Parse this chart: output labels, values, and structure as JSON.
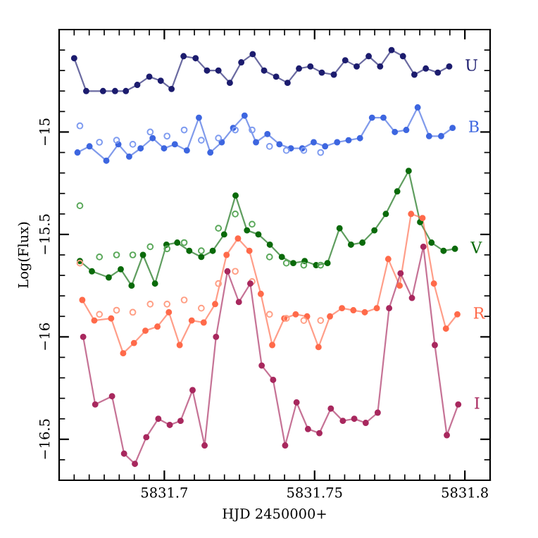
{
  "chart_data": {
    "type": "line",
    "xlabel": "HJD 2450000+",
    "ylabel": "Log(Flux)",
    "xlim": [
      5831.665,
      5831.8084
    ],
    "ylim": [
      -16.7,
      -14.5
    ],
    "marker": "circle",
    "grid": false,
    "legend": false,
    "xticks": [
      {
        "value": 5831.67,
        "label": null
      },
      {
        "value": 5831.675,
        "label": null
      },
      {
        "value": 5831.68,
        "label": null
      },
      {
        "value": 5831.685,
        "label": null
      },
      {
        "value": 5831.69,
        "label": null
      },
      {
        "value": 5831.695,
        "label": null
      },
      {
        "value": 5831.7,
        "label": "5831.7"
      },
      {
        "value": 5831.705,
        "label": null
      },
      {
        "value": 5831.71,
        "label": null
      },
      {
        "value": 5831.715,
        "label": null
      },
      {
        "value": 5831.72,
        "label": null
      },
      {
        "value": 5831.725,
        "label": null
      },
      {
        "value": 5831.73,
        "label": null
      },
      {
        "value": 5831.735,
        "label": null
      },
      {
        "value": 5831.74,
        "label": null
      },
      {
        "value": 5831.745,
        "label": null
      },
      {
        "value": 5831.75,
        "label": "5831.75"
      },
      {
        "value": 5831.755,
        "label": null
      },
      {
        "value": 5831.76,
        "label": null
      },
      {
        "value": 5831.765,
        "label": null
      },
      {
        "value": 5831.77,
        "label": null
      },
      {
        "value": 5831.775,
        "label": null
      },
      {
        "value": 5831.78,
        "label": null
      },
      {
        "value": 5831.785,
        "label": null
      },
      {
        "value": 5831.79,
        "label": null
      },
      {
        "value": 5831.795,
        "label": null
      },
      {
        "value": 5831.8,
        "label": "5831.8"
      }
    ],
    "yticks": [
      {
        "value": -16.6,
        "label": null
      },
      {
        "value": -16.5,
        "label": "−16.5"
      },
      {
        "value": -16.4,
        "label": null
      },
      {
        "value": -16.3,
        "label": null
      },
      {
        "value": -16.2,
        "label": null
      },
      {
        "value": -16.1,
        "label": null
      },
      {
        "value": -16.0,
        "label": "−16"
      },
      {
        "value": -15.9,
        "label": null
      },
      {
        "value": -15.8,
        "label": null
      },
      {
        "value": -15.7,
        "label": null
      },
      {
        "value": -15.6,
        "label": null
      },
      {
        "value": -15.5,
        "label": "−15.5"
      },
      {
        "value": -15.4,
        "label": null
      },
      {
        "value": -15.3,
        "label": null
      },
      {
        "value": -15.2,
        "label": null
      },
      {
        "value": -15.1,
        "label": null
      },
      {
        "value": -15.0,
        "label": "−15"
      },
      {
        "value": -14.9,
        "label": null
      },
      {
        "value": -14.8,
        "label": null
      },
      {
        "value": -14.7,
        "label": null
      },
      {
        "value": -14.6,
        "label": null
      }
    ],
    "series": [
      {
        "name": "U",
        "color": "#1c1c6e",
        "x": [
          5831.67,
          5831.674,
          5831.6796,
          5831.6836,
          5831.6872,
          5831.691,
          5831.695,
          5831.6988,
          5831.7024,
          5831.7064,
          5831.7104,
          5831.7142,
          5831.718,
          5831.7218,
          5831.7256,
          5831.7294,
          5831.7332,
          5831.7372,
          5831.741,
          5831.7448,
          5831.7486,
          5831.7524,
          5831.7564,
          5831.7602,
          5831.764,
          5831.768,
          5831.7718,
          5831.7756,
          5831.7794,
          5831.7832,
          5831.787,
          5831.791,
          5831.7948
        ],
        "values": [
          -14.64,
          -14.8,
          -14.8,
          -14.8,
          -14.8,
          -14.77,
          -14.73,
          -14.75,
          -14.79,
          -14.63,
          -14.64,
          -14.7,
          -14.7,
          -14.76,
          -14.66,
          -14.62,
          -14.7,
          -14.73,
          -14.76,
          -14.69,
          -14.68,
          -14.71,
          -14.72,
          -14.65,
          -14.68,
          -14.63,
          -14.68,
          -14.6,
          -14.63,
          -14.72,
          -14.69,
          -14.71,
          -14.68
        ]
      },
      {
        "name": "B",
        "color": "#3d66e0",
        "x": [
          5831.6711,
          5831.6751,
          5831.6807,
          5831.6847,
          5831.6883,
          5831.6921,
          5831.6961,
          5831.6999,
          5831.7035,
          5831.7075,
          5831.7115,
          5831.7153,
          5831.7191,
          5831.7229,
          5831.7267,
          5831.7305,
          5831.7343,
          5831.7383,
          5831.7421,
          5831.7459,
          5831.7497,
          5831.7535,
          5831.7575,
          5831.7613,
          5831.7651,
          5831.7691,
          5831.7729,
          5831.7767,
          5831.7805,
          5831.7843,
          5831.7881,
          5831.7921,
          5831.7959
        ],
        "values": [
          -15.1,
          -15.07,
          -15.14,
          -15.06,
          -15.12,
          -15.08,
          -15.03,
          -15.08,
          -15.06,
          -15.09,
          -14.93,
          -15.1,
          -15.05,
          -14.98,
          -14.92,
          -15.05,
          -15.01,
          -15.06,
          -15.08,
          -15.08,
          -15.05,
          -15.07,
          -15.05,
          -15.04,
          -15.03,
          -14.93,
          -14.93,
          -15.0,
          -14.99,
          -14.88,
          -15.02,
          -15.02,
          -14.98
        ]
      },
      {
        "type": "scatter",
        "color": "#7f9cf0",
        "x": [
          5831.6719,
          5831.6784,
          5831.6841,
          5831.6895,
          5831.6953,
          5831.7009,
          5831.7066,
          5831.7123,
          5831.718,
          5831.7236,
          5831.7292,
          5831.735,
          5831.7406,
          5831.7464,
          5831.752
        ],
        "values": [
          -14.97,
          -15.05,
          -15.04,
          -15.06,
          -15.0,
          -15.02,
          -14.99,
          -15.04,
          -15.03,
          -14.99,
          -14.99,
          -15.07,
          -15.09,
          -15.09,
          -15.1
        ]
      },
      {
        "name": "V",
        "color": "#0a6a0a",
        "x": [
          5831.6719,
          5831.6759,
          5831.6815,
          5831.6855,
          5831.6891,
          5831.6929,
          5831.6969,
          5831.7007,
          5831.7043,
          5831.7083,
          5831.7123,
          5831.7161,
          5831.7199,
          5831.7237,
          5831.7275,
          5831.7313,
          5831.7351,
          5831.7391,
          5831.7429,
          5831.7467,
          5831.7505,
          5831.7543,
          5831.7583,
          5831.7621,
          5831.7659,
          5831.7699,
          5831.7737,
          5831.7775,
          5831.7813,
          5831.7851,
          5831.7889,
          5831.7929,
          5831.7967
        ],
        "values": [
          -15.63,
          -15.68,
          -15.71,
          -15.67,
          -15.75,
          -15.6,
          -15.74,
          -15.55,
          -15.54,
          -15.58,
          -15.61,
          -15.58,
          -15.5,
          -15.31,
          -15.48,
          -15.5,
          -15.55,
          -15.61,
          -15.64,
          -15.63,
          -15.65,
          -15.64,
          -15.47,
          -15.55,
          -15.54,
          -15.48,
          -15.4,
          -15.29,
          -15.19,
          -15.44,
          -15.54,
          -15.58,
          -15.57
        ]
      },
      {
        "type": "scatter",
        "color": "#5aa85a",
        "x": [
          5831.6719,
          5831.6784,
          5831.6841,
          5831.6895,
          5831.6953,
          5831.7009,
          5831.7066,
          5831.7123,
          5831.718,
          5831.7236,
          5831.7292,
          5831.735,
          5831.7406,
          5831.7464,
          5831.752
        ],
        "values": [
          -15.36,
          -15.61,
          -15.6,
          -15.6,
          -15.56,
          -15.57,
          -15.54,
          -15.58,
          -15.47,
          -15.4,
          -15.45,
          -15.61,
          -15.64,
          -15.65,
          -15.65
        ]
      },
      {
        "name": "R",
        "color": "#ff6a4a",
        "x": [
          5831.6727,
          5831.6767,
          5831.6823,
          5831.6863,
          5831.6899,
          5831.6937,
          5831.6977,
          5831.7015,
          5831.7051,
          5831.7091,
          5831.7131,
          5831.7169,
          5831.7207,
          5831.7245,
          5831.7283,
          5831.7321,
          5831.7359,
          5831.7399,
          5831.7437,
          5831.7475,
          5831.7513,
          5831.7551,
          5831.7591,
          5831.7629,
          5831.7667,
          5831.7707,
          5831.7745,
          5831.7783,
          5831.7821,
          5831.7859,
          5831.7897,
          5831.7937,
          5831.7975
        ],
        "values": [
          -15.82,
          -15.92,
          -15.91,
          -16.08,
          -16.03,
          -15.97,
          -15.95,
          -15.88,
          -16.04,
          -15.92,
          -15.93,
          -15.84,
          -15.6,
          -15.52,
          -15.58,
          -15.79,
          -16.04,
          -15.91,
          -15.89,
          -15.9,
          -16.05,
          -15.9,
          -15.86,
          -15.87,
          -15.88,
          -15.86,
          -15.62,
          -15.75,
          -15.4,
          -15.42,
          -15.74,
          -15.96,
          -15.89
        ]
      },
      {
        "type": "scatter",
        "color": "#ff9f85",
        "x": [
          5831.6719,
          5831.6784,
          5831.6841,
          5831.6895,
          5831.6953,
          5831.7009,
          5831.7066,
          5831.7123,
          5831.718,
          5831.7236,
          5831.7292,
          5831.735,
          5831.7406,
          5831.7464,
          5831.752
        ],
        "values": [
          -15.64,
          -15.89,
          -15.87,
          -15.88,
          -15.84,
          -15.84,
          -15.82,
          -15.86,
          -15.74,
          -15.68,
          -15.73,
          -15.89,
          -15.91,
          -15.92,
          -15.92
        ]
      },
      {
        "name": "I",
        "color": "#a8285e",
        "x": [
          5831.673,
          5831.677,
          5831.6826,
          5831.6866,
          5831.6902,
          5831.694,
          5831.698,
          5831.7018,
          5831.7054,
          5831.7094,
          5831.7134,
          5831.7172,
          5831.721,
          5831.7248,
          5831.7286,
          5831.7324,
          5831.7362,
          5831.7402,
          5831.744,
          5831.7478,
          5831.7516,
          5831.7554,
          5831.7594,
          5831.7632,
          5831.767,
          5831.771,
          5831.7748,
          5831.7786,
          5831.7824,
          5831.7862,
          5831.79,
          5831.794,
          5831.7978
        ],
        "values": [
          -16.0,
          -16.33,
          -16.29,
          -16.57,
          -16.62,
          -16.49,
          -16.4,
          -16.43,
          -16.41,
          -16.26,
          -16.53,
          -16.0,
          -15.68,
          -15.83,
          -15.74,
          -16.14,
          -16.21,
          -16.53,
          -16.32,
          -16.45,
          -16.47,
          -16.35,
          -16.41,
          -16.4,
          -16.42,
          -16.37,
          -15.86,
          -15.69,
          -15.81,
          -15.56,
          -16.04,
          -16.48,
          -16.33
        ]
      }
    ]
  }
}
